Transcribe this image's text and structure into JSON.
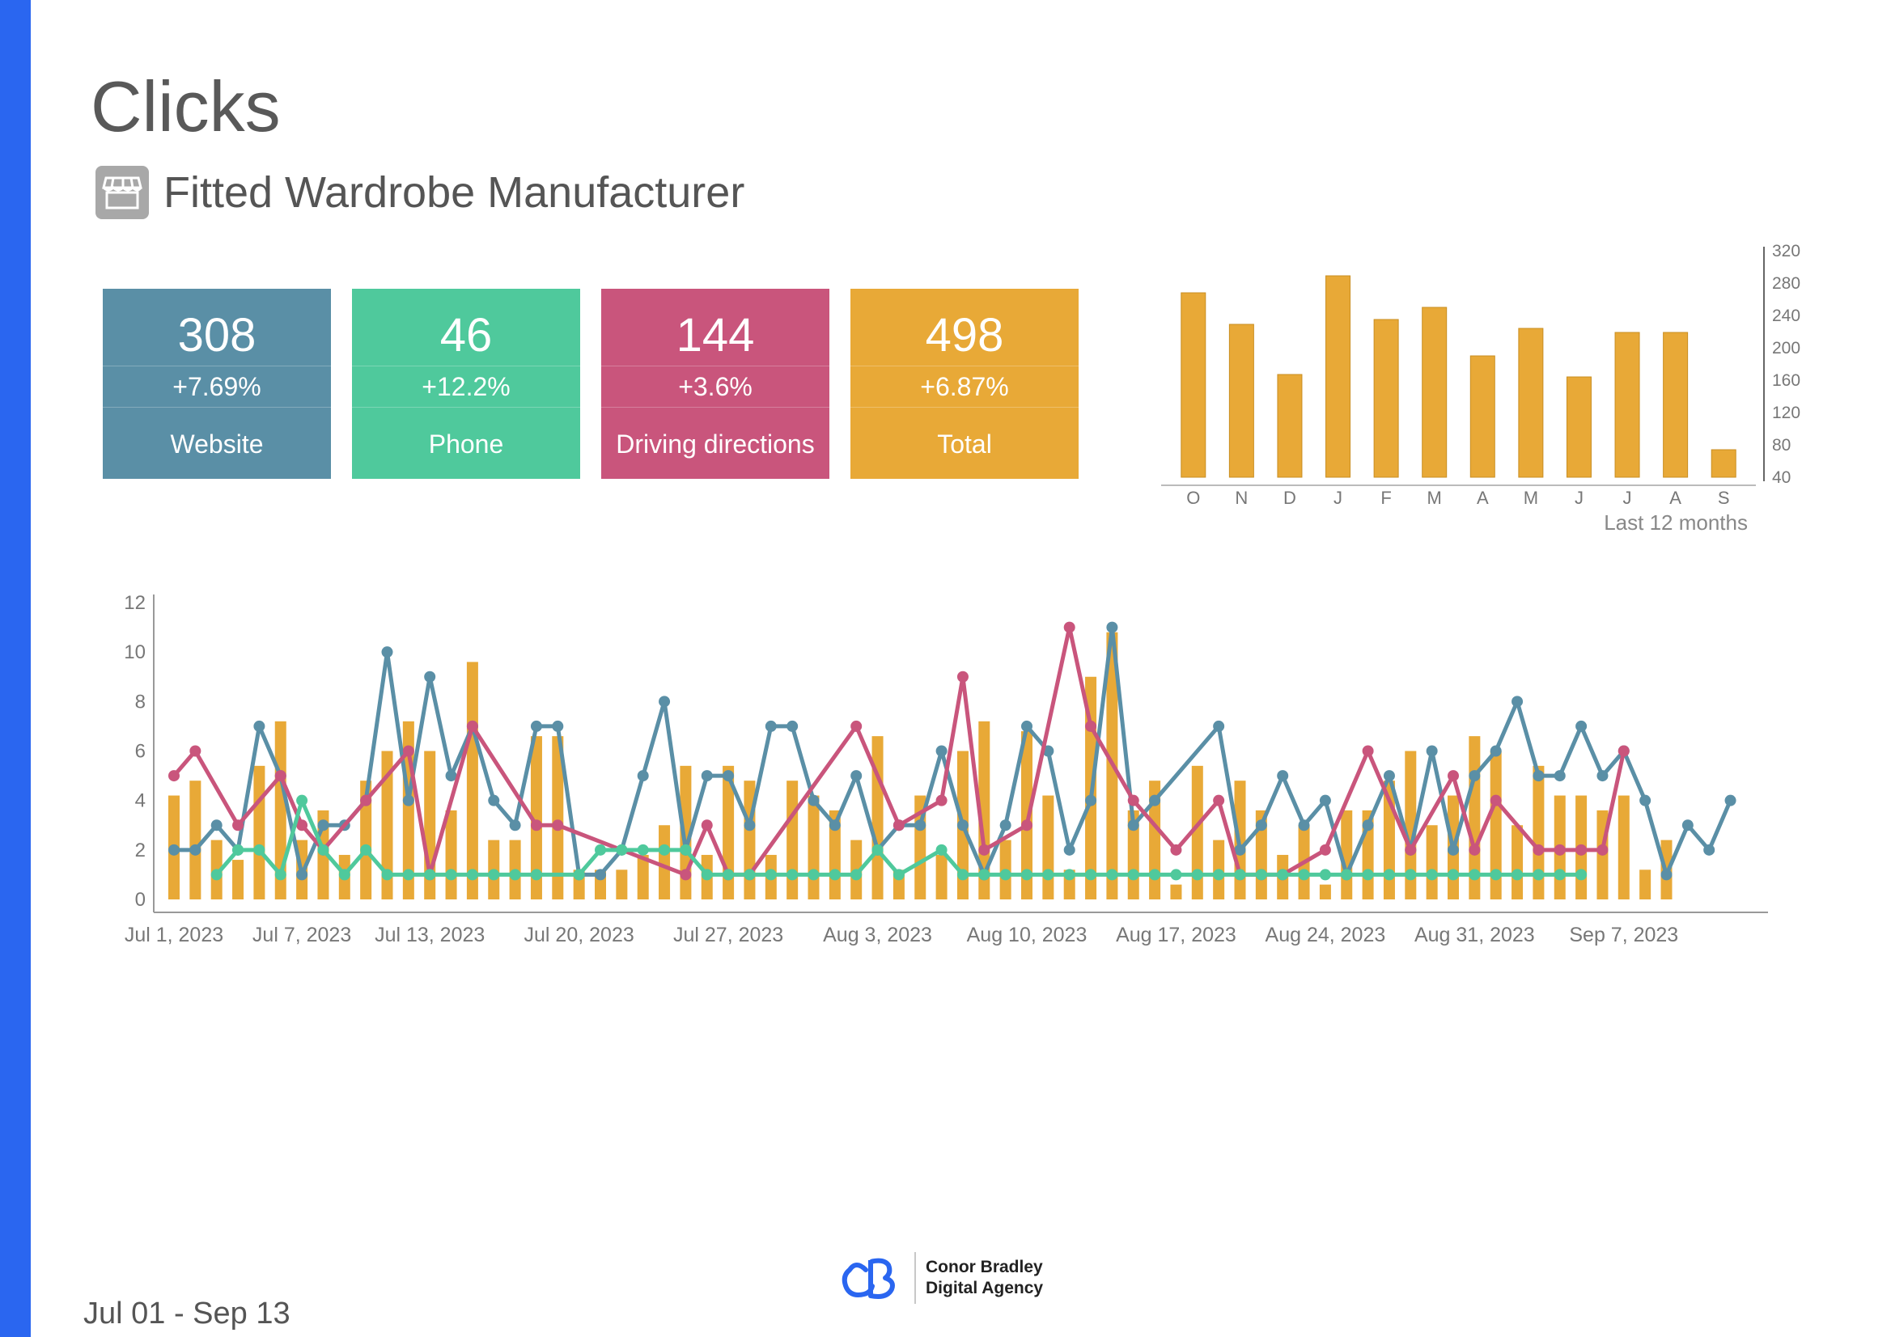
{
  "page": {
    "title": "Clicks",
    "subtitle": "Fitted Wardrobe Manufacturer",
    "date_range": "Jul 01 - Sep 13",
    "brand_line1": "Conor Bradley",
    "brand_line2": "Digital Agency",
    "icons": {
      "store": "storefront-icon",
      "logo": "agency-logo-icon"
    }
  },
  "kpis": [
    {
      "value": "308",
      "change": "+7.69%",
      "label": "Website",
      "color": "#5a8fa6"
    },
    {
      "value": "46",
      "change": "+12.2%",
      "label": "Phone",
      "color": "#4fc99c"
    },
    {
      "value": "144",
      "change": "+3.6%",
      "label": "Driving directions",
      "color": "#c9557c"
    },
    {
      "value": "498",
      "change": "+6.87%",
      "label": "Total",
      "color": "#e8a937"
    }
  ],
  "chart_data": [
    {
      "type": "bar",
      "categories": [
        "O",
        "N",
        "D",
        "J",
        "F",
        "M",
        "A",
        "M",
        "J",
        "J",
        "A",
        "S"
      ],
      "values": [
        268,
        229,
        167,
        289,
        235,
        250,
        190,
        224,
        164,
        219,
        219,
        74
      ],
      "xlabel": "Last 12 months",
      "ylim": [
        40,
        320
      ],
      "yticks": [
        40,
        80,
        120,
        160,
        200,
        240,
        280,
        320
      ],
      "axis_side": "right",
      "color": "#e8a937",
      "grid": false
    },
    {
      "type": "line",
      "x_start": "2023-07-01",
      "xtick_labels": [
        "Jul 1, 2023",
        "Jul 7, 2023",
        "Jul 13, 2023",
        "Jul 20, 2023",
        "Jul 27, 2023",
        "Aug 3, 2023",
        "Aug 10, 2023",
        "Aug 17, 2023",
        "Aug 24, 2023",
        "Aug 31, 2023",
        "Sep 7, 2023"
      ],
      "xtick_days": [
        0,
        6,
        12,
        19,
        26,
        33,
        40,
        47,
        54,
        61,
        68
      ],
      "ylim": [
        0,
        12
      ],
      "yticks": [
        0,
        2,
        4,
        6,
        8,
        10,
        12
      ],
      "grid": false,
      "series": [
        {
          "kind": "bar",
          "color": "#e8a937",
          "values": [
            4.2,
            4.8,
            2.4,
            1.6,
            5.4,
            7.2,
            2.4,
            3.6,
            1.8,
            4.8,
            6,
            7.2,
            6,
            3.6,
            9.6,
            2.4,
            2.4,
            6.6,
            6.6,
            1.2,
            1.2,
            1.2,
            1.8,
            3,
            5.4,
            1.8,
            5.4,
            4.8,
            1.8,
            4.8,
            4.2,
            3.6,
            2.4,
            6.6,
            1.2,
            4.2,
            1.8,
            6,
            7.2,
            2.4,
            6.8,
            4.2,
            1.2,
            9,
            10.8,
            3.6,
            4.8,
            0.6,
            5.4,
            2.4,
            4.8,
            3.6,
            1.8,
            3,
            0.6,
            3.6,
            3.6,
            4.8,
            6,
            3,
            4.2,
            6.6,
            6,
            3,
            5.4,
            4.2,
            4.2,
            3.6,
            4.2,
            1.2,
            2.4
          ]
        },
        {
          "kind": "line",
          "color": "#5a8fa6",
          "values": [
            2,
            2,
            3,
            2,
            7,
            5,
            1,
            3,
            3,
            4,
            10,
            4,
            9,
            5,
            7,
            4,
            3,
            7,
            7,
            1,
            1,
            2,
            5,
            8,
            2,
            5,
            5,
            3,
            7,
            7,
            4,
            3,
            5,
            2,
            3,
            3,
            6,
            3,
            1,
            3,
            7,
            6,
            2,
            4,
            11,
            3,
            4,
            null,
            null,
            7,
            2,
            3,
            5,
            3,
            4,
            1,
            3,
            5,
            2,
            6,
            2,
            5,
            6,
            8,
            5,
            5,
            7,
            5,
            6,
            4,
            1,
            3,
            2,
            4
          ]
        },
        {
          "kind": "line",
          "color": "#c9557c",
          "values": [
            5,
            6,
            null,
            3,
            null,
            5,
            3,
            2,
            null,
            4,
            null,
            6,
            1,
            null,
            7,
            null,
            null,
            3,
            3,
            null,
            null,
            null,
            null,
            null,
            1,
            3,
            1,
            1,
            null,
            null,
            null,
            null,
            7,
            null,
            3,
            null,
            4,
            9,
            2,
            null,
            3,
            null,
            11,
            7,
            null,
            4,
            null,
            2,
            null,
            4,
            1,
            1,
            1,
            null,
            2,
            null,
            6,
            null,
            2,
            null,
            5,
            2,
            4,
            null,
            2,
            2,
            2,
            2,
            6
          ]
        },
        {
          "kind": "line",
          "color": "#4fc99c",
          "values": [
            null,
            null,
            1,
            2,
            2,
            1,
            4,
            2,
            1,
            2,
            1,
            1,
            1,
            1,
            1,
            1,
            1,
            1,
            null,
            1,
            2,
            2,
            2,
            2,
            2,
            1,
            1,
            1,
            1,
            1,
            1,
            1,
            1,
            2,
            1,
            null,
            2,
            1,
            1,
            1,
            1,
            1,
            1,
            1,
            1,
            1,
            1,
            1,
            1,
            1,
            1,
            1,
            1,
            1,
            1,
            1,
            1,
            1,
            1,
            1,
            1,
            1,
            1,
            1,
            1,
            1,
            1
          ]
        }
      ]
    }
  ]
}
